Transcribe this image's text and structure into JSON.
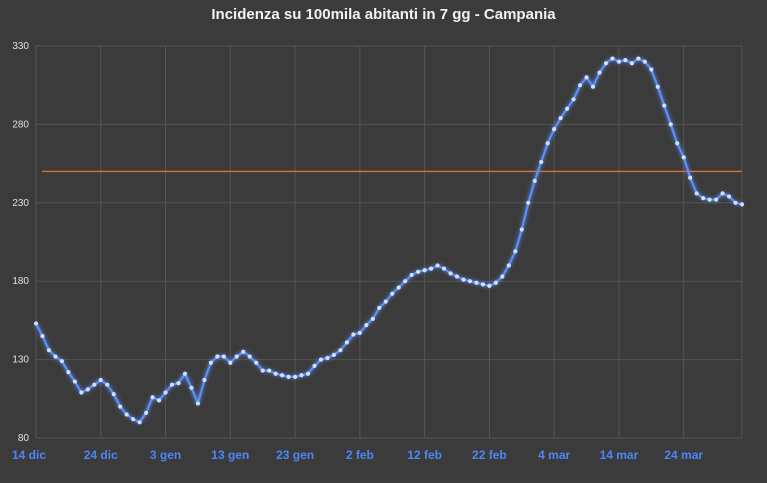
{
  "chart_data": {
    "type": "line",
    "title": "Incidenza su 100mila abitanti in 7 gg - Campania",
    "xlabel": "",
    "ylabel": "",
    "ylim": [
      80,
      330
    ],
    "y_ticks": [
      80,
      130,
      180,
      230,
      280,
      330
    ],
    "x_tick_labels": [
      "14 dic",
      "24 dic",
      "3 gen",
      "13 gen",
      "23 gen",
      "2 feb",
      "12 feb",
      "22 feb",
      "4 mar",
      "14 mar",
      "24 mar"
    ],
    "x_start": "2020-12-14",
    "threshold": 250,
    "grid": true,
    "colors": {
      "line": "#5b8ff9",
      "threshold": "#e0703a",
      "background": "#3b3b3b",
      "grid": "#555555"
    },
    "series": [
      {
        "values": [
          153,
          145,
          136,
          132,
          129,
          122,
          116,
          109,
          111,
          114,
          117,
          114,
          108,
          100,
          95,
          92,
          90,
          96,
          106,
          104,
          109,
          114,
          115,
          121,
          112,
          102,
          117,
          128,
          132,
          132,
          128,
          132,
          135,
          132,
          128,
          123,
          123,
          121,
          120,
          119,
          119,
          120,
          121,
          126,
          130,
          131,
          133,
          136,
          141,
          146,
          147,
          152,
          156,
          163,
          167,
          172,
          176,
          180,
          184,
          186,
          187,
          188,
          190,
          188,
          185,
          183,
          181,
          180,
          179,
          178,
          177,
          179,
          183,
          190,
          199,
          213,
          230,
          244,
          256,
          268,
          277,
          284,
          290,
          296,
          305,
          310,
          304,
          313,
          319,
          322,
          320,
          321,
          319,
          322,
          320,
          315,
          304,
          292,
          280,
          268,
          259,
          246,
          236,
          233,
          232,
          232,
          236,
          234,
          230,
          229
        ]
      }
    ]
  }
}
